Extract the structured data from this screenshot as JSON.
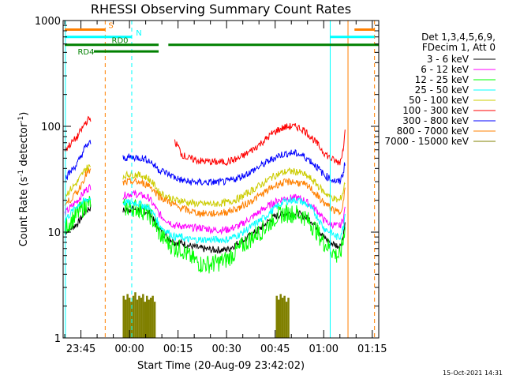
{
  "chart_data": {
    "type": "line",
    "title": "RHESSI Observing Summary Count Rates",
    "xlabel": "Start Time (20-Aug-09 23:42:02)",
    "ylabel_main": "Count Rate (s",
    "ylabel_sup1": "-1",
    "ylabel_mid": " detector",
    "ylabel_sup2": "-1",
    "ylabel_end": ")",
    "y_scale": "log",
    "ylim": [
      1,
      1000
    ],
    "xlim_minutes_from_2340": [
      -0.5,
      97
    ],
    "y_ticks": [
      {
        "value": 1,
        "label": "1"
      },
      {
        "value": 10,
        "label": "10"
      },
      {
        "value": 100,
        "label": "100"
      },
      {
        "value": 1000,
        "label": "1000"
      }
    ],
    "x_ticks": [
      {
        "minutes": 5,
        "label": "23:45"
      },
      {
        "minutes": 20,
        "label": "00:00"
      },
      {
        "minutes": 35,
        "label": "00:15"
      },
      {
        "minutes": 50,
        "label": "00:30"
      },
      {
        "minutes": 65,
        "label": "00:45"
      },
      {
        "minutes": 80,
        "label": "01:00"
      },
      {
        "minutes": 95,
        "label": "01:15"
      }
    ],
    "legend": {
      "placement": "right",
      "header1": "Det 1,3,4,5,6,9,",
      "header2": "FDecim 1, Att 0"
    },
    "footer_stamp": "15-Oct-2021 14:31",
    "series": [
      {
        "name": "3 - 6 keV",
        "color": "#000000",
        "x": [
          0,
          4,
          6.5,
          8,
          10,
          12,
          14,
          16,
          18,
          20,
          22,
          24,
          26,
          28,
          29,
          30,
          34,
          35,
          36,
          38,
          42,
          46,
          50,
          54,
          58,
          62,
          64,
          66,
          68,
          70,
          72,
          74,
          76,
          78,
          80,
          82,
          84,
          85,
          86,
          86.6
        ],
        "y": [
          10,
          12,
          16,
          17,
          null,
          null,
          null,
          null,
          16,
          16.5,
          16.5,
          16,
          15.5,
          12,
          11,
          10,
          8,
          8,
          8,
          7.5,
          7,
          6.8,
          6.8,
          8,
          9.5,
          12,
          13.5,
          14.5,
          15,
          15,
          15,
          14,
          13,
          11,
          9,
          8,
          7.5,
          7.5,
          9,
          12
        ]
      },
      {
        "name": "6 - 12 keV",
        "color": "#ff00ff",
        "x": [
          0,
          4,
          6.5,
          8,
          10,
          12,
          14,
          16,
          18,
          20,
          22,
          24,
          26,
          28,
          29,
          30,
          34,
          35,
          36,
          38,
          42,
          46,
          50,
          54,
          58,
          62,
          64,
          66,
          68,
          70,
          72,
          74,
          76,
          78,
          80,
          82,
          84,
          85,
          86,
          86.6
        ],
        "y": [
          15,
          20,
          25,
          27,
          null,
          null,
          null,
          null,
          22,
          23,
          23,
          22,
          21,
          17,
          15,
          14,
          11.5,
          11.5,
          11.5,
          11,
          11,
          10.5,
          10.5,
          11.5,
          14,
          17,
          18.5,
          20,
          21,
          21,
          21,
          20,
          18,
          16,
          13,
          12,
          11.5,
          11.5,
          13,
          17
        ]
      },
      {
        "name": "12 - 25 keV",
        "color": "#00ff00",
        "x": [
          0,
          4,
          6.5,
          8,
          10,
          12,
          14,
          16,
          18,
          20,
          22,
          24,
          26,
          28,
          29,
          30,
          34,
          35,
          36,
          38,
          42,
          46,
          50,
          54,
          58,
          62,
          64,
          66,
          68,
          70,
          72,
          74,
          76,
          78,
          80,
          82,
          84,
          85,
          86,
          86.6
        ],
        "y": [
          11,
          15,
          18,
          19,
          null,
          null,
          null,
          null,
          17,
          17,
          17,
          16,
          15,
          12,
          10,
          9,
          7,
          7,
          7,
          6,
          5,
          5,
          5.5,
          7,
          9,
          11,
          13,
          14.5,
          15,
          15,
          15,
          14,
          12,
          10,
          8,
          7,
          6,
          6,
          8,
          12
        ]
      },
      {
        "name": "25 - 50 keV",
        "color": "#00ffff",
        "x": [
          0,
          4,
          6.5,
          8,
          10,
          12,
          14,
          16,
          18,
          20,
          22,
          24,
          26,
          28,
          29,
          30,
          34,
          35,
          36,
          38,
          42,
          46,
          50,
          54,
          58,
          62,
          64,
          66,
          68,
          70,
          72,
          74,
          76,
          78,
          80,
          82,
          84,
          85,
          86,
          86.6
        ],
        "y": [
          13,
          18,
          20,
          21,
          null,
          null,
          null,
          null,
          19,
          19,
          19,
          18,
          17,
          14,
          12,
          11,
          9,
          9,
          9,
          8.5,
          8.5,
          8.5,
          8.5,
          9.5,
          11.5,
          14,
          16,
          18,
          19.5,
          20,
          20,
          19,
          17,
          14,
          11,
          10,
          9,
          9,
          11,
          15
        ]
      },
      {
        "name": "50 - 100 keV",
        "color": "#cccc00",
        "x": [
          0,
          4,
          6.5,
          8,
          10,
          12,
          14,
          16,
          18,
          20,
          22,
          24,
          26,
          28,
          29,
          30,
          34,
          35,
          36,
          38,
          42,
          46,
          50,
          54,
          58,
          62,
          64,
          66,
          68,
          70,
          72,
          74,
          76,
          78,
          80,
          82,
          84,
          85,
          86,
          86.6
        ],
        "y": [
          22,
          30,
          40,
          42,
          null,
          null,
          null,
          null,
          34,
          35,
          35,
          34,
          32,
          27,
          24,
          23,
          20,
          20,
          20,
          19,
          18.5,
          18.5,
          19,
          21,
          25,
          30,
          33,
          35.5,
          37,
          37.5,
          37,
          35,
          32,
          28,
          24,
          22,
          20,
          20,
          24,
          30
        ]
      },
      {
        "name": "100 - 300 keV",
        "color": "#ff0000",
        "x": [
          0,
          4,
          6.5,
          8,
          10,
          12,
          14,
          16,
          18,
          20,
          22,
          24,
          26,
          28,
          29,
          30,
          34,
          35,
          36,
          38,
          42,
          46,
          50,
          54,
          58,
          62,
          64,
          66,
          68,
          70,
          72,
          74,
          76,
          78,
          80,
          82,
          84,
          85,
          86,
          86.6
        ],
        "y": [
          60,
          80,
          110,
          120,
          null,
          null,
          null,
          null,
          null,
          null,
          null,
          null,
          null,
          null,
          null,
          null,
          70,
          65,
          55,
          50,
          47,
          46,
          46,
          50,
          60,
          75,
          85,
          93,
          98,
          100,
          98,
          92,
          80,
          68,
          57,
          50,
          46,
          46,
          60,
          100
        ]
      },
      {
        "name": "300 - 800 keV",
        "color": "#0000ff",
        "x": [
          0,
          4,
          6.5,
          8,
          10,
          12,
          14,
          16,
          18,
          20,
          22,
          24,
          26,
          28,
          29,
          30,
          34,
          35,
          36,
          38,
          42,
          46,
          50,
          54,
          58,
          62,
          64,
          66,
          68,
          70,
          72,
          74,
          76,
          78,
          80,
          82,
          84,
          85,
          86,
          86.6
        ],
        "y": [
          32,
          45,
          65,
          70,
          null,
          null,
          null,
          null,
          50,
          51,
          51,
          50,
          48,
          42,
          39,
          38,
          33,
          32,
          31,
          30,
          29.5,
          29.5,
          30,
          33,
          38,
          45,
          49,
          53,
          55,
          56,
          55,
          52,
          47,
          41,
          35,
          32,
          30,
          30,
          36,
          46
        ]
      },
      {
        "name": "800 - 7000 keV",
        "color": "#ff8000",
        "x": [
          0,
          4,
          6.5,
          8,
          10,
          12,
          14,
          16,
          18,
          20,
          22,
          24,
          26,
          28,
          29,
          30,
          34,
          35,
          36,
          38,
          42,
          46,
          50,
          54,
          58,
          62,
          64,
          66,
          68,
          70,
          72,
          74,
          76,
          78,
          80,
          82,
          84,
          85,
          86,
          86.6
        ],
        "y": [
          18,
          24,
          35,
          38,
          null,
          null,
          null,
          null,
          29,
          30,
          30,
          29,
          28,
          24,
          22,
          21,
          18,
          17,
          17,
          16,
          15,
          15,
          15.5,
          17,
          20,
          24,
          26.5,
          28.5,
          29.5,
          30,
          29.5,
          28,
          26,
          22,
          19,
          17,
          15.5,
          15.5,
          19,
          25
        ]
      },
      {
        "name": "7000 - 15000 keV",
        "color": "#808000",
        "bars_x": [
          18.2,
          18.8,
          19.4,
          20,
          20.6,
          21.2,
          21.8,
          22.4,
          23,
          23.6,
          24.2,
          24.8,
          25.4,
          26,
          26.6,
          27.2,
          27.8,
          65.5,
          66.1,
          66.7,
          67.3,
          67.9,
          68.5,
          69.1
        ],
        "bars_y": [
          2.5,
          2.3,
          2.6,
          2.4,
          2.2,
          2.5,
          2.7,
          2.3,
          2.5,
          2.4,
          2.6,
          2.2,
          2.5,
          2.3,
          2.4,
          2.5,
          2.2,
          2.5,
          2.3,
          2.6,
          2.4,
          2.5,
          2.2,
          2.4
        ]
      }
    ],
    "data_gaps_minutes": [
      [
        8.3,
        17.0
      ]
    ],
    "markers": {
      "vertical_lines": [
        {
          "minutes": 0.2,
          "color": "#00ffff",
          "style": "solid"
        },
        {
          "minutes": 12.5,
          "color": "#ff8000",
          "style": "dashed"
        },
        {
          "minutes": 20.7,
          "color": "#00ffff",
          "style": "dashed"
        },
        {
          "minutes": 82.0,
          "color": "#00ffff",
          "style": "solid"
        },
        {
          "minutes": 87.5,
          "color": "#ff8000",
          "style": "solid"
        },
        {
          "minutes": 95.7,
          "color": "#ff8000",
          "style": "dashed"
        }
      ],
      "segments": [
        {
          "label": "S",
          "color": "#ff8000",
          "y": 820,
          "x0": 0,
          "x1": 12.5,
          "label_at": 13.5
        },
        {
          "label": "N",
          "color": "#00ffff",
          "y": 700,
          "x0": 0,
          "x1": 20.7,
          "label_at": 22
        },
        {
          "label": "RD0",
          "color": "#008000",
          "y": 590,
          "x0": 0,
          "x1": 100,
          "label_at": 14.5
        },
        {
          "label": "RD4",
          "color": "#008000",
          "y": 510,
          "x0": 9,
          "x1": 29,
          "label_at": 4
        },
        {
          "label": "S",
          "color": "#ff8000",
          "y": 820,
          "x0": 89.5,
          "x1": 95.7,
          "label_at": null
        },
        {
          "label": "N",
          "color": "#00ffff",
          "y": 700,
          "x0": 82.0,
          "x1": 95.7,
          "label_at": null
        }
      ],
      "rd0_break": [
        29,
        32
      ]
    }
  }
}
